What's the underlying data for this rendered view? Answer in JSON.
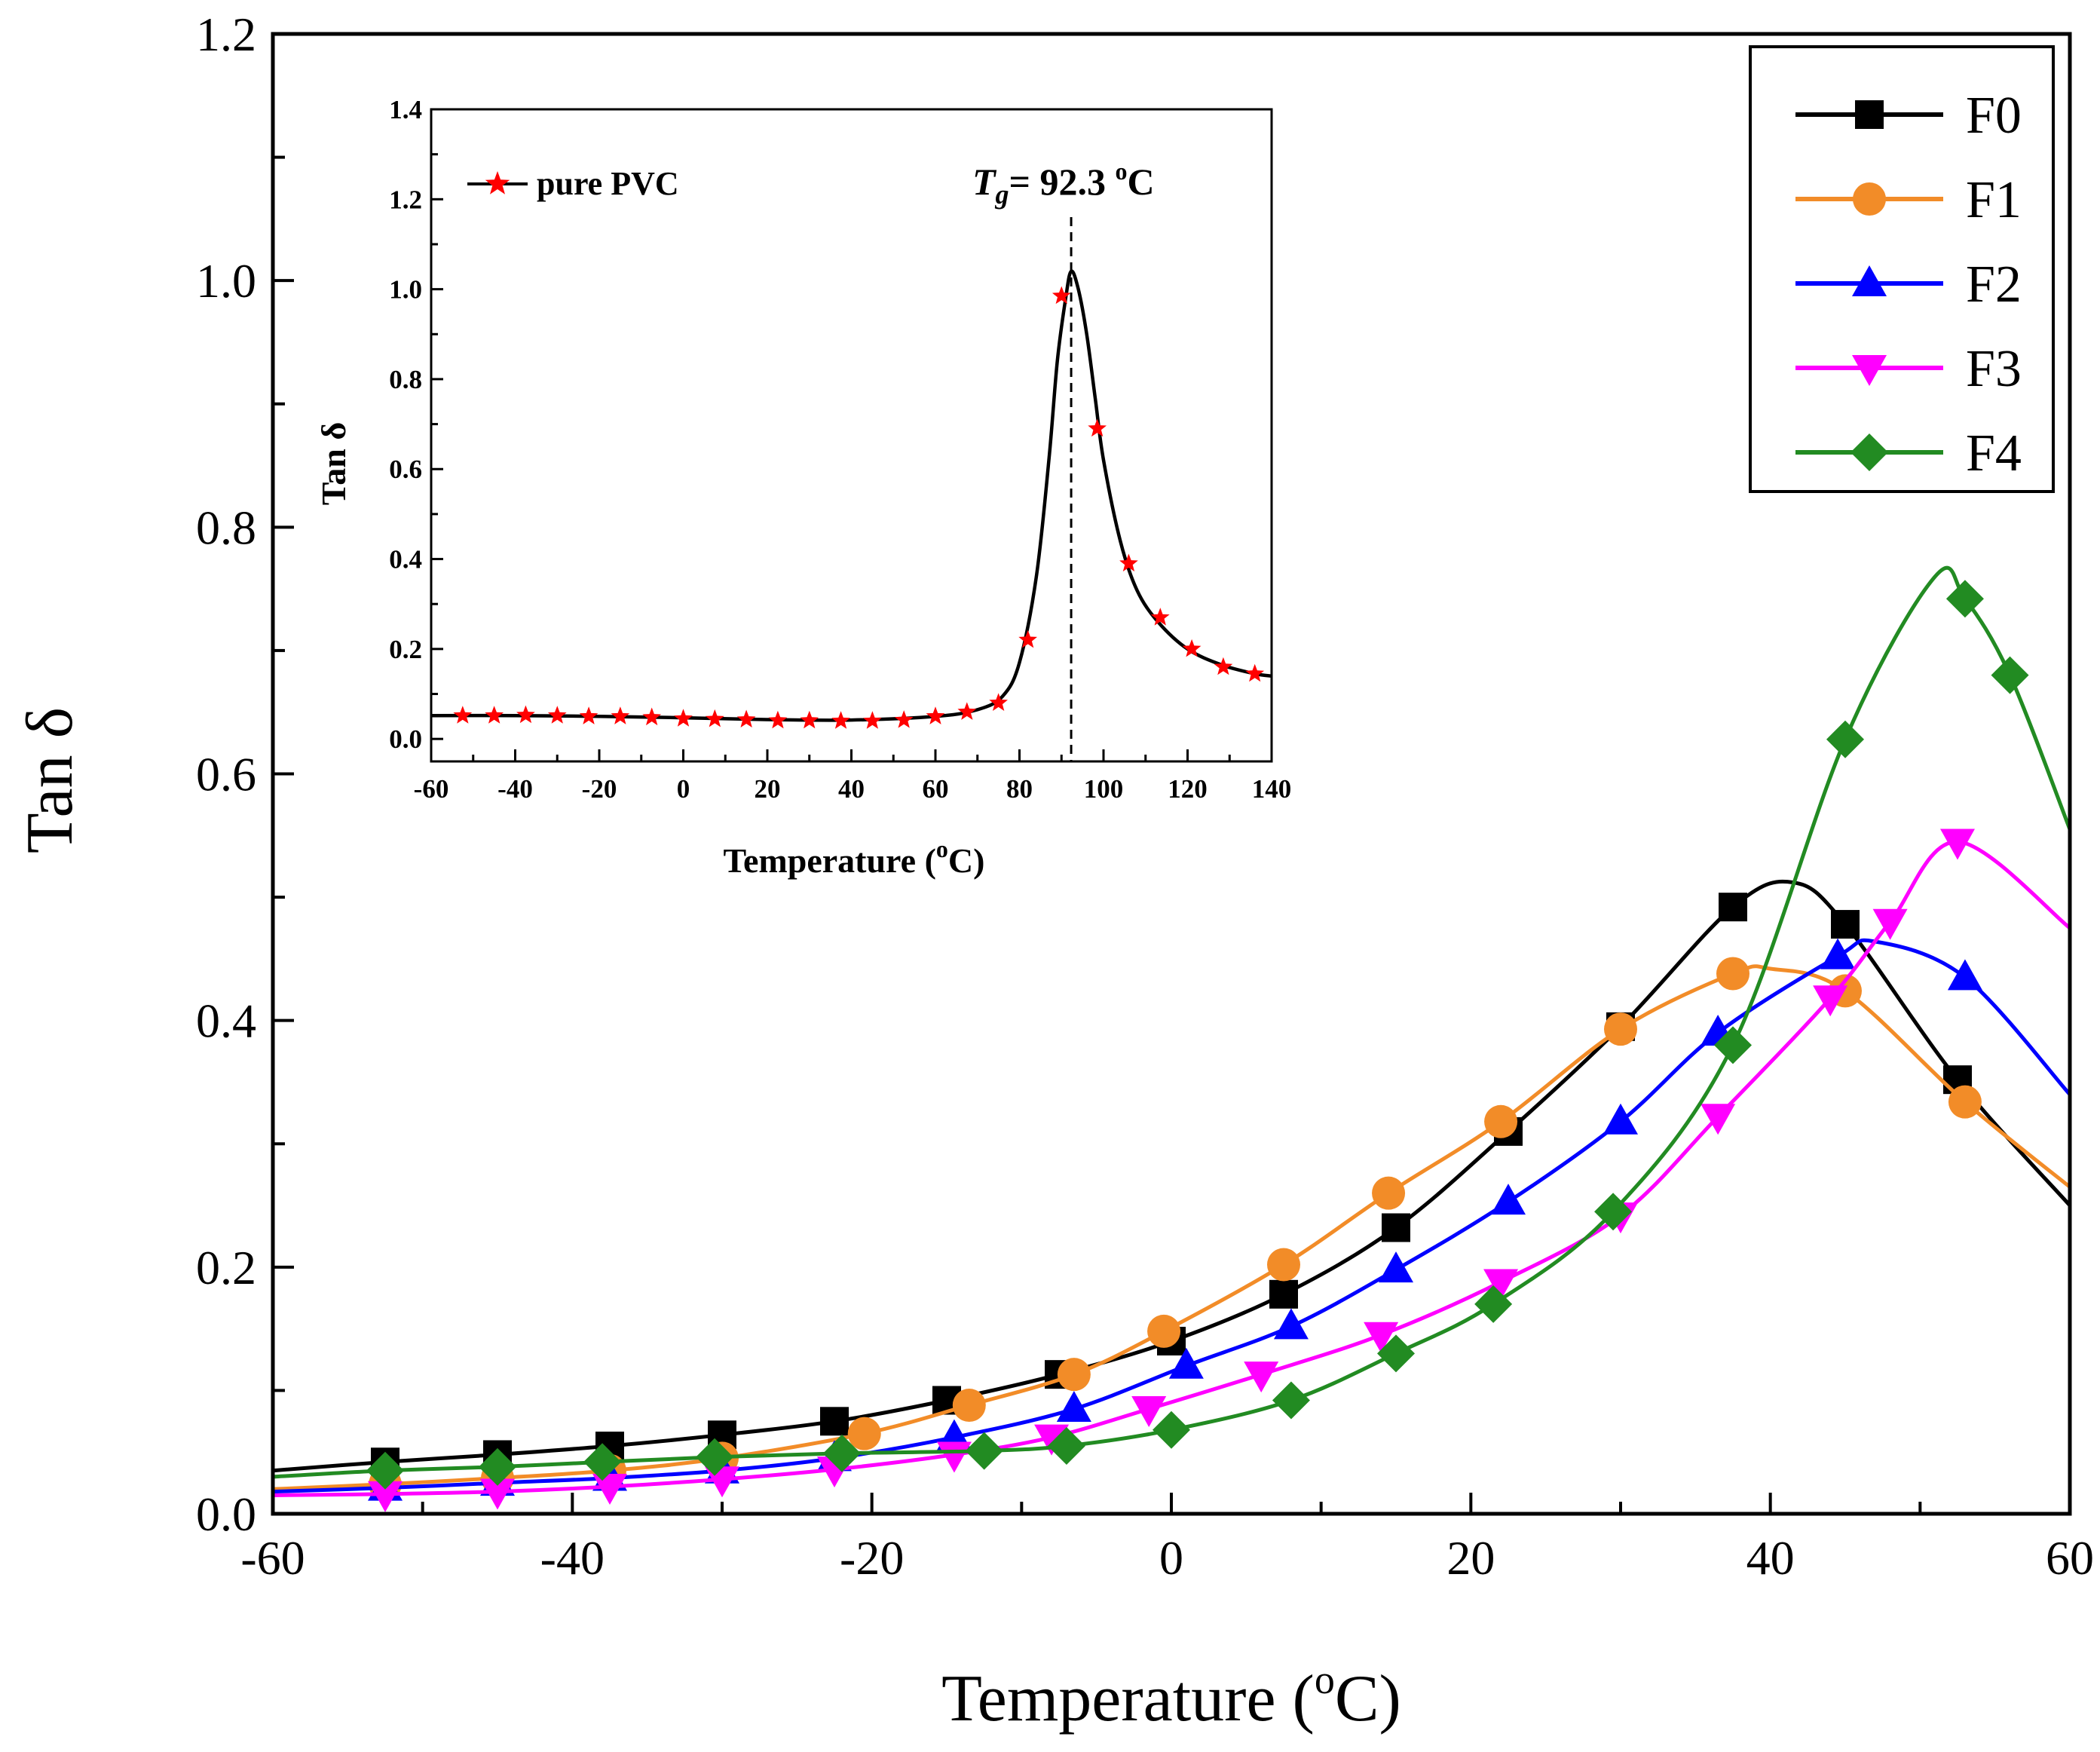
{
  "chart_data": [
    {
      "type": "line",
      "xlabel_parts": [
        "Temperature (",
        "o",
        "C)"
      ],
      "ylabel": "Tan δ",
      "xlim": [
        -60,
        60
      ],
      "ylim": [
        0,
        1.2
      ],
      "x_ticks": [
        "-60",
        "-40",
        "-20",
        "0",
        "20",
        "40",
        "60"
      ],
      "y_ticks": [
        "0.0",
        "0.2",
        "0.4",
        "0.6",
        "0.8",
        "1.0",
        "1.2"
      ],
      "legend_position": "top-right",
      "series": [
        {
          "name": "F0",
          "color": "#000000",
          "marker": "square",
          "x": [
            -60,
            -52.5,
            -45,
            -37.5,
            -30,
            -22.5,
            -15,
            -7.5,
            0,
            7.5,
            15,
            22.5,
            30,
            37.5,
            41.5,
            45,
            52.5,
            60
          ],
          "y": [
            0.035,
            0.042,
            0.048,
            0.055,
            0.064,
            0.075,
            0.092,
            0.113,
            0.14,
            0.178,
            0.232,
            0.31,
            0.395,
            0.492,
            0.512,
            0.478,
            0.352,
            0.25
          ]
        },
        {
          "name": "F1",
          "color": "#f28c28",
          "marker": "circle",
          "x": [
            -60,
            -52.5,
            -45,
            -37.5,
            -30,
            -20.5,
            -13.5,
            -6.5,
            -0.5,
            7.5,
            14.5,
            22,
            30,
            37.5,
            40,
            45,
            53,
            60
          ],
          "y": [
            0.02,
            0.024,
            0.029,
            0.035,
            0.045,
            0.065,
            0.088,
            0.113,
            0.148,
            0.202,
            0.26,
            0.318,
            0.393,
            0.438,
            0.442,
            0.424,
            0.334,
            0.265
          ]
        },
        {
          "name": "F2",
          "color": "#0000ff",
          "marker": "triangle-up",
          "x": [
            -60,
            -52.5,
            -45,
            -37.5,
            -30,
            -22.5,
            -14.5,
            -6.5,
            1,
            8,
            15,
            22.5,
            30,
            36.5,
            44.5,
            47,
            53,
            60
          ],
          "y": [
            0.018,
            0.021,
            0.025,
            0.029,
            0.035,
            0.045,
            0.062,
            0.085,
            0.12,
            0.152,
            0.198,
            0.253,
            0.318,
            0.39,
            0.452,
            0.464,
            0.435,
            0.34
          ]
        },
        {
          "name": "F3",
          "color": "#ff00ff",
          "marker": "triangle-down",
          "x": [
            -60,
            -52.5,
            -45,
            -37.5,
            -30,
            -22.5,
            -14.5,
            -8,
            -1.5,
            6,
            14,
            22,
            30,
            36.5,
            44,
            48,
            52.5,
            60
          ],
          "y": [
            0.015,
            0.016,
            0.018,
            0.022,
            0.028,
            0.036,
            0.048,
            0.062,
            0.085,
            0.113,
            0.145,
            0.188,
            0.242,
            0.322,
            0.418,
            0.48,
            0.545,
            0.475
          ]
        },
        {
          "name": "F4",
          "color": "#228b22",
          "marker": "diamond",
          "x": [
            -60,
            -52.5,
            -45,
            -38,
            -30.5,
            -22,
            -12.5,
            -7,
            0,
            8,
            15,
            21.5,
            29.5,
            37.5,
            45,
            51,
            53,
            56,
            60
          ],
          "y": [
            0.03,
            0.035,
            0.038,
            0.042,
            0.046,
            0.049,
            0.051,
            0.055,
            0.068,
            0.092,
            0.13,
            0.17,
            0.245,
            0.38,
            0.628,
            0.76,
            0.742,
            0.68,
            0.555
          ]
        }
      ]
    },
    {
      "type": "line",
      "xlabel_parts": [
        "Temperature (",
        "o",
        "C)"
      ],
      "ylabel": "Tan δ",
      "xlim": [
        -60,
        140
      ],
      "ylim": [
        -0.05,
        1.4
      ],
      "x_ticks": [
        "-60",
        "-40",
        "-20",
        "0",
        "20",
        "40",
        "60",
        "80",
        "100",
        "120",
        "140"
      ],
      "y_ticks": [
        "0.0",
        "0.2",
        "0.4",
        "0.6",
        "0.8",
        "1.0",
        "1.2",
        "1.4"
      ],
      "legend_position": "top-left",
      "annotation": {
        "prefix": "T",
        "sub": "g",
        "text": "= 92.3 ",
        "sup": "o",
        "suffix": "C",
        "x": 92.3
      },
      "series": [
        {
          "name": "pure PVC",
          "color": "#000000",
          "marker_color": "#ff0000",
          "marker": "star",
          "line_x": [
            -60,
            -40,
            -20,
            0,
            20,
            40,
            60,
            70,
            76,
            80,
            84,
            87,
            89,
            91,
            92.3,
            94,
            96,
            98,
            100,
            104,
            108,
            113,
            120,
            128,
            136,
            140
          ],
          "line_y": [
            0.052,
            0.052,
            0.05,
            0.047,
            0.043,
            0.042,
            0.05,
            0.065,
            0.095,
            0.17,
            0.36,
            0.62,
            0.84,
            0.98,
            1.04,
            1.0,
            0.9,
            0.76,
            0.62,
            0.44,
            0.33,
            0.26,
            0.2,
            0.165,
            0.145,
            0.14
          ],
          "x": [
            -60,
            -52.5,
            -45,
            -37.5,
            -30,
            -22.5,
            -15,
            -7.5,
            0,
            7.5,
            15,
            22.5,
            30,
            37.5,
            45,
            52.5,
            60,
            67.5,
            75,
            82,
            90,
            98.5,
            106,
            113.5,
            121,
            128.5,
            136
          ],
          "y": [
            0.05,
            0.052,
            0.052,
            0.053,
            0.052,
            0.05,
            0.05,
            0.048,
            0.045,
            0.044,
            0.043,
            0.041,
            0.041,
            0.04,
            0.04,
            0.042,
            0.05,
            0.06,
            0.08,
            0.22,
            0.985,
            0.69,
            0.39,
            0.27,
            0.2,
            0.16,
            0.145
          ]
        }
      ]
    }
  ]
}
